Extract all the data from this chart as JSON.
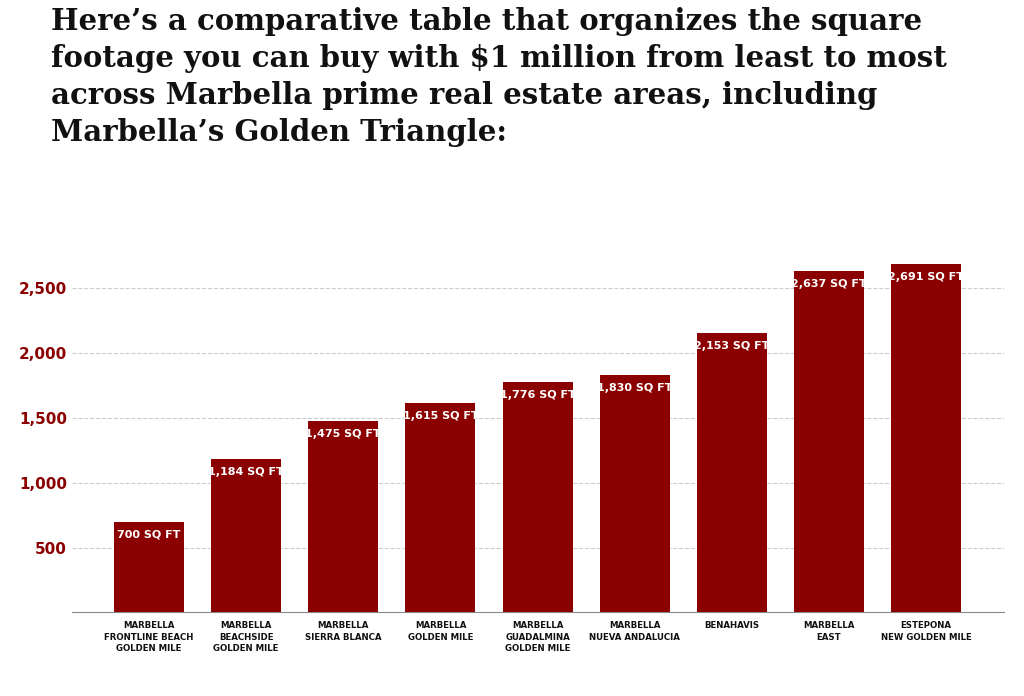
{
  "categories": [
    "MARBELLA\nFRONTLINE BEACH\nGOLDEN MILE",
    "MARBELLA\nBEACHSIDE\nGOLDEN MILE",
    "MARBELLA\nSIERRA BLANCA",
    "MARBELLA\nGOLDEN MILE",
    "MARBELLA\nGUADALMINA\nGOLDEN MILE",
    "MARBELLA\nNUEVA ANDALUCIA",
    "BENAHAVIS",
    "MARBELLA\nEAST",
    "ESTEPONA\nNEW GOLDEN MILE"
  ],
  "values": [
    700,
    1184,
    1475,
    1615,
    1776,
    1830,
    2153,
    2637,
    2691
  ],
  "labels": [
    "700 SQ FT",
    "1,184 SQ FT",
    "1,475 SQ FT",
    "1,615 SQ FT",
    "1,776 SQ FT",
    "1,830 SQ FT",
    "2,153 SQ FT",
    "2,637 SQ FT",
    "2,691 SQ FT"
  ],
  "bar_color": "#8B0000",
  "background_color": "#FFFFFF",
  "title_text": "Here’s a comparative table that organizes the square\nfootage you can buy with $1 million from least to most\nacross Marbella prime real estate areas, including\nMarbella’s Golden Triangle:",
  "yticks": [
    500,
    1000,
    1500,
    2000,
    2500
  ],
  "ylim": [
    0,
    2900
  ],
  "grid_color": "#CCCCCC",
  "label_color": "#FFFFFF",
  "tick_color": "#8B0000",
  "title_fontsize": 21,
  "label_fontsize": 8,
  "xtick_fontsize": 6.2,
  "ytick_fontsize": 11
}
